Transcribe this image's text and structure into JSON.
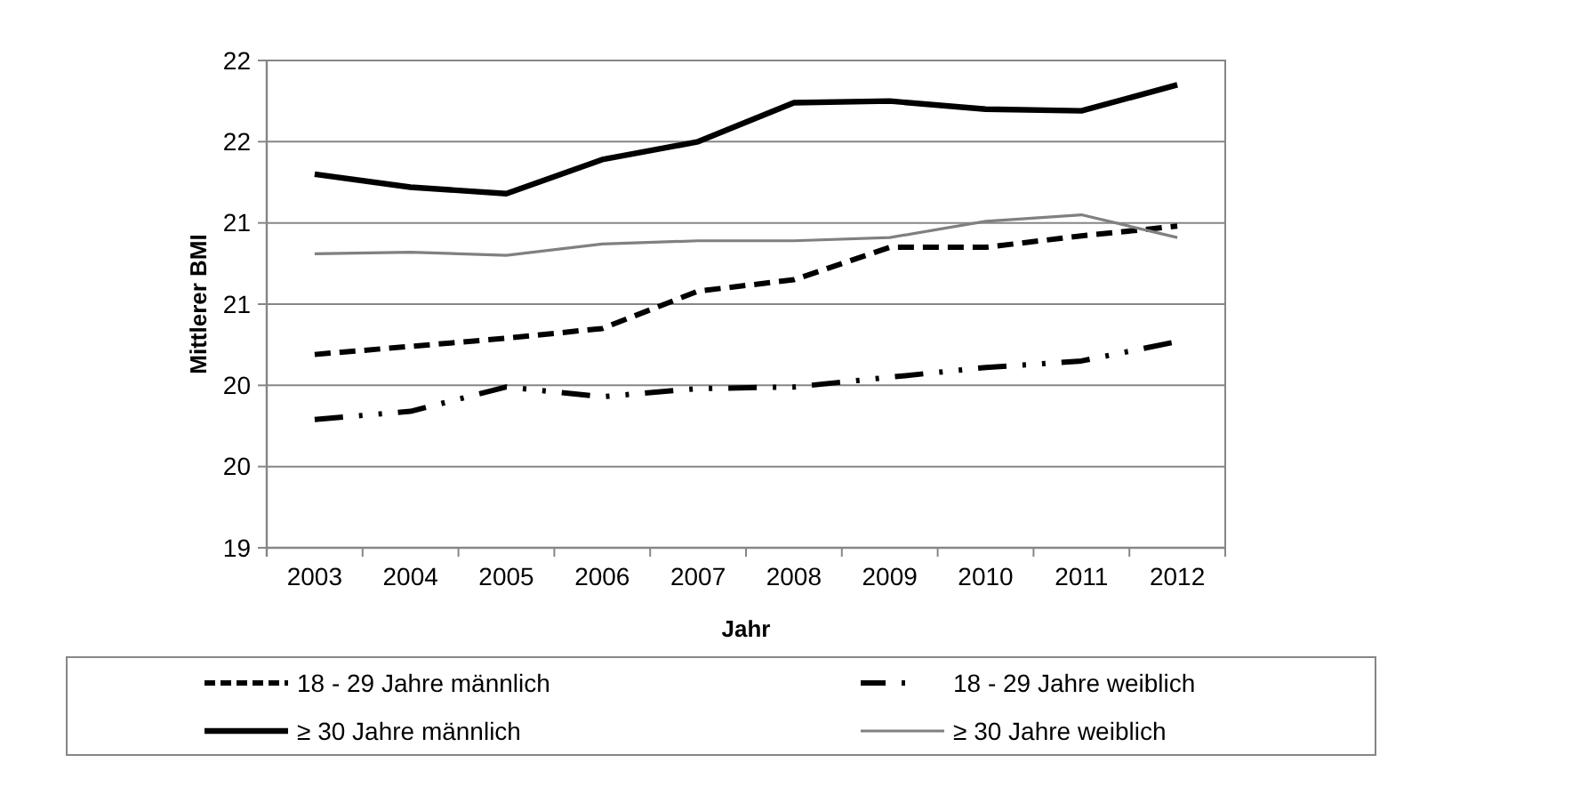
{
  "chart_data": {
    "type": "line",
    "xlabel": "Jahr",
    "ylabel": "Mittlerer BMI",
    "categories": [
      "2003",
      "2004",
      "2005",
      "2006",
      "2007",
      "2008",
      "2009",
      "2010",
      "2011",
      "2012"
    ],
    "series": [
      {
        "name": "18 - 29 Jahre männlich",
        "color": "#000000",
        "line_style": "dashed",
        "values": [
          20.19,
          20.24,
          20.29,
          20.35,
          20.58,
          20.65,
          20.85,
          20.85,
          20.92,
          20.98
        ]
      },
      {
        "name": "18 - 29 Jahre weiblich",
        "color": "#000000",
        "line_style": "dashdot",
        "values": [
          19.79,
          19.84,
          19.99,
          19.93,
          19.98,
          19.99,
          20.05,
          20.11,
          20.15,
          20.27
        ]
      },
      {
        "name": "≥ 30 Jahre männlich",
        "color": "#000000",
        "line_style": "solid",
        "values": [
          21.3,
          21.22,
          21.18,
          21.39,
          21.5,
          21.74,
          21.75,
          21.7,
          21.69,
          21.85
        ]
      },
      {
        "name": "≥ 30 Jahre weiblich",
        "color": "#808080",
        "line_style": "solid",
        "values": [
          20.81,
          20.82,
          20.8,
          20.87,
          20.89,
          20.89,
          20.91,
          21.01,
          21.05,
          20.91
        ]
      }
    ],
    "ylim": [
      19,
      22
    ],
    "yticks": [
      19,
      {
        "value": 19.5,
        "label": "20"
      },
      20,
      {
        "value": 20.5,
        "label": "21"
      },
      21,
      {
        "value": 21.5,
        "label": "22"
      },
      22
    ],
    "grid": "y",
    "legend": "bottom",
    "marker": "none"
  }
}
